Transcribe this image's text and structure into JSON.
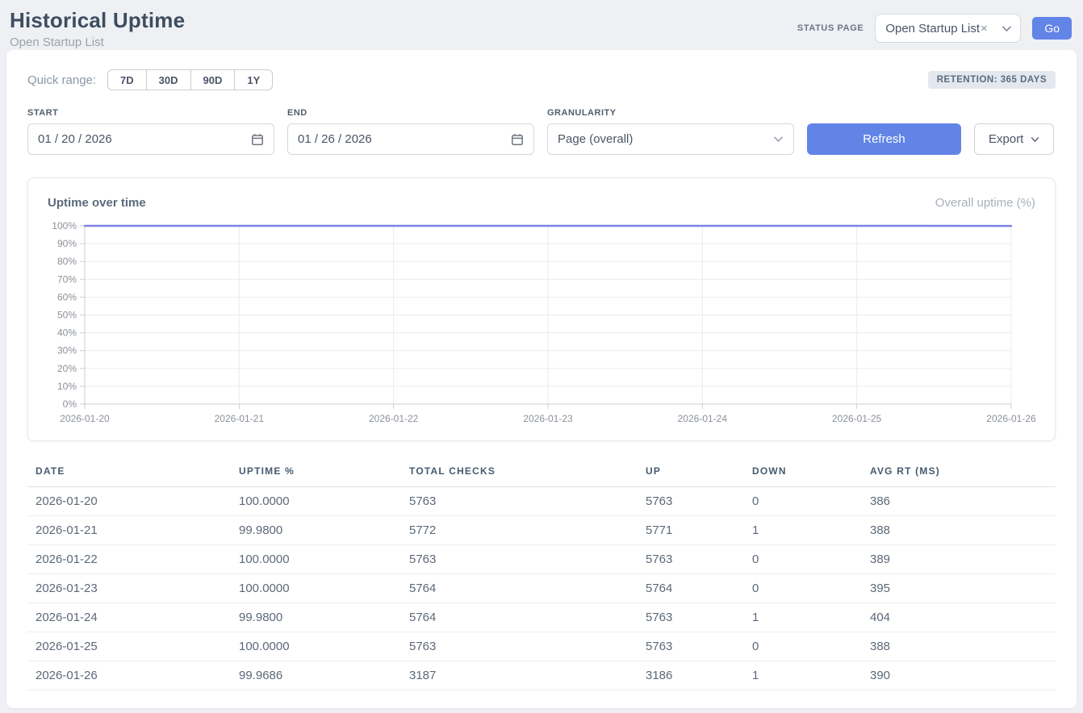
{
  "header": {
    "title": "Historical Uptime",
    "subtitle": "Open Startup List",
    "status_page_label": "STATUS PAGE",
    "status_page_value": "Open Startup List",
    "go_label": "Go"
  },
  "icons": {
    "clear": "×"
  },
  "filters": {
    "quick_range_label": "Quick range:",
    "quick_ranges": [
      "7D",
      "30D",
      "90D",
      "1Y"
    ],
    "retention_badge": "RETENTION: 365 DAYS",
    "start_label": "START",
    "start_value": "01 / 20 / 2026",
    "end_label": "END",
    "end_value": "01 / 26 / 2026",
    "granularity_label": "GRANULARITY",
    "granularity_value": "Page (overall)",
    "refresh_label": "Refresh",
    "export_label": "Export"
  },
  "chart": {
    "title": "Uptime over time",
    "legend": "Overall uptime (%)"
  },
  "chart_data": {
    "type": "line",
    "title": "Uptime over time",
    "x": [
      "2026-01-20",
      "2026-01-21",
      "2026-01-22",
      "2026-01-23",
      "2026-01-24",
      "2026-01-25",
      "2026-01-26"
    ],
    "series": [
      {
        "name": "Overall uptime (%)",
        "values": [
          100.0,
          99.98,
          100.0,
          100.0,
          99.98,
          100.0,
          99.9686
        ]
      }
    ],
    "ylim": [
      0,
      100
    ],
    "yticks": [
      "0%",
      "10%",
      "20%",
      "30%",
      "40%",
      "50%",
      "60%",
      "70%",
      "80%",
      "90%",
      "100%"
    ],
    "grid": true,
    "legend_position": "top-right",
    "line_color": "#7c81e8"
  },
  "table": {
    "columns": [
      "DATE",
      "UPTIME %",
      "TOTAL CHECKS",
      "UP",
      "DOWN",
      "AVG RT (MS)"
    ],
    "rows": [
      [
        "2026-01-20",
        "100.0000",
        "5763",
        "5763",
        "0",
        "386"
      ],
      [
        "2026-01-21",
        "99.9800",
        "5772",
        "5771",
        "1",
        "388"
      ],
      [
        "2026-01-22",
        "100.0000",
        "5763",
        "5763",
        "0",
        "389"
      ],
      [
        "2026-01-23",
        "100.0000",
        "5764",
        "5764",
        "0",
        "395"
      ],
      [
        "2026-01-24",
        "99.9800",
        "5764",
        "5763",
        "1",
        "404"
      ],
      [
        "2026-01-25",
        "100.0000",
        "5763",
        "5763",
        "0",
        "388"
      ],
      [
        "2026-01-26",
        "99.9686",
        "3187",
        "3186",
        "1",
        "390"
      ]
    ]
  }
}
